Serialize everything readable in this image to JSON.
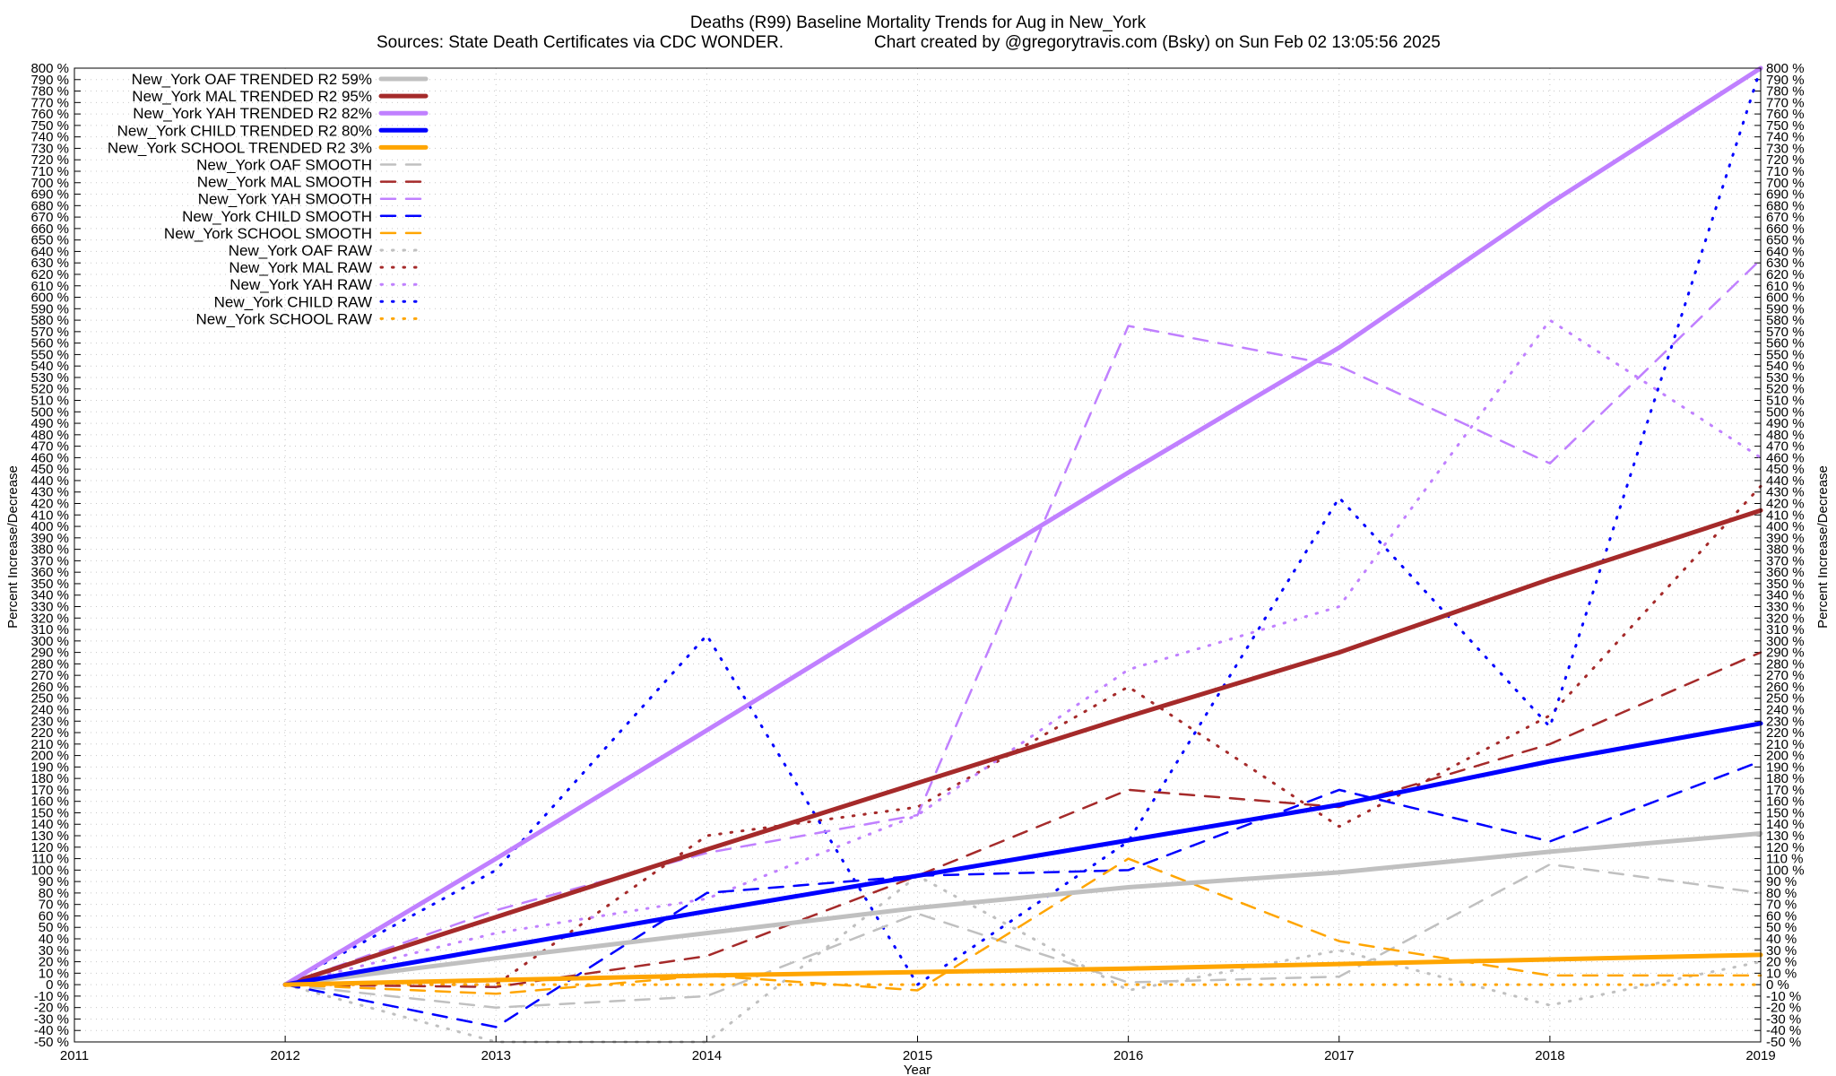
{
  "chart_data": {
    "type": "line",
    "title": "Deaths (R99)  Baseline Mortality Trends for Aug in New_York",
    "subtitle_left": "Sources: State Death Certificates via CDC WONDER.",
    "subtitle_right": "Chart created by @gregorytravis.com (Bsky) on Sun Feb 02 13:05:56 2025",
    "xlabel": "Year",
    "ylabel": "Percent Increase/Decrease",
    "y2label": "Percent Increase/Decrease",
    "xlim": [
      2011,
      2019
    ],
    "ylim": [
      -50,
      800
    ],
    "ytick_step": 10,
    "grid": true,
    "legend_position": "top-left",
    "x_ticks": [
      "2011",
      "2012",
      "2013",
      "2014",
      "2015",
      "2016",
      "2017",
      "2018",
      "2019"
    ],
    "y_ticks": [
      "-50 %",
      "-40 %",
      "-30 %",
      "-20 %",
      "-10 %",
      "0 %",
      "10 %",
      "20 %",
      "30 %",
      "40 %",
      "50 %",
      "60 %",
      "70 %",
      "80 %",
      "90 %",
      "100 %",
      "110 %",
      "120 %",
      "130 %",
      "140 %",
      "150 %",
      "160 %",
      "170 %",
      "180 %",
      "190 %",
      "200 %",
      "210 %",
      "220 %",
      "230 %",
      "240 %",
      "250 %",
      "260 %",
      "270 %",
      "280 %",
      "290 %",
      "300 %",
      "310 %",
      "320 %",
      "330 %",
      "340 %",
      "350 %",
      "360 %",
      "370 %",
      "380 %",
      "390 %",
      "400 %",
      "410 %",
      "420 %",
      "430 %",
      "440 %",
      "450 %",
      "460 %",
      "470 %",
      "480 %",
      "490 %",
      "500 %",
      "510 %",
      "520 %",
      "530 %",
      "540 %",
      "550 %",
      "560 %",
      "570 %",
      "580 %",
      "590 %",
      "600 %",
      "610 %",
      "620 %",
      "630 %",
      "640 %",
      "650 %",
      "660 %",
      "670 %",
      "680 %",
      "690 %",
      "700 %",
      "710 %",
      "720 %",
      "730 %",
      "740 %",
      "750 %",
      "760 %",
      "770 %",
      "780 %",
      "790 %",
      "800 %"
    ],
    "series": [
      {
        "name": "New_York OAF TRENDED R2  59%",
        "color": "#c0c0c0",
        "style": "solid",
        "x": [
          2012,
          2013,
          2014,
          2015,
          2016,
          2017,
          2018,
          2019
        ],
        "y": [
          0,
          23,
          45,
          67,
          85,
          98,
          116,
          132
        ]
      },
      {
        "name": "New_York MAL TRENDED R2  95%",
        "color": "#a52a2a",
        "style": "solid",
        "x": [
          2012,
          2013,
          2014,
          2015,
          2016,
          2017,
          2018,
          2019
        ],
        "y": [
          0,
          59,
          118,
          176,
          234,
          290,
          354,
          414
        ]
      },
      {
        "name": "New_York YAH TRENDED R2  82%",
        "color": "#c080ff",
        "style": "solid",
        "x": [
          2012,
          2013,
          2014,
          2015,
          2016,
          2017,
          2018,
          2019
        ],
        "y": [
          0,
          110,
          222,
          335,
          447,
          556,
          682,
          800
        ]
      },
      {
        "name": "New_York CHILD TRENDED R2  80%",
        "color": "#0000ff",
        "style": "solid",
        "x": [
          2012,
          2013,
          2014,
          2015,
          2016,
          2017,
          2018,
          2019
        ],
        "y": [
          0,
          32,
          64,
          95,
          126,
          157,
          195,
          228
        ]
      },
      {
        "name": "New_York SCHOOL TRENDED R2  3%",
        "color": "#ffa500",
        "style": "solid",
        "x": [
          2012,
          2013,
          2014,
          2015,
          2016,
          2017,
          2018,
          2019
        ],
        "y": [
          0,
          4,
          8,
          11,
          14,
          18,
          22,
          26
        ]
      },
      {
        "name": "New_York OAF SMOOTH",
        "color": "#c0c0c0",
        "style": "dashed",
        "x": [
          2012,
          2013,
          2014,
          2015,
          2016,
          2017,
          2018,
          2019
        ],
        "y": [
          0,
          -20,
          -10,
          62,
          2,
          7,
          105,
          80
        ]
      },
      {
        "name": "New_York MAL SMOOTH",
        "color": "#a52a2a",
        "style": "dashed",
        "x": [
          2012,
          2013,
          2014,
          2015,
          2016,
          2017,
          2018,
          2019
        ],
        "y": [
          0,
          -2,
          25,
          95,
          170,
          155,
          210,
          290
        ]
      },
      {
        "name": "New_York YAH SMOOTH",
        "color": "#c080ff",
        "style": "dashed",
        "x": [
          2012,
          2013,
          2014,
          2015,
          2016,
          2017,
          2018,
          2019
        ],
        "y": [
          0,
          65,
          115,
          148,
          575,
          540,
          455,
          633
        ]
      },
      {
        "name": "New_York CHILD SMOOTH",
        "color": "#0000ff",
        "style": "dashed",
        "x": [
          2012,
          2013,
          2014,
          2015,
          2016,
          2017,
          2018,
          2019
        ],
        "y": [
          0,
          -37,
          80,
          95,
          100,
          170,
          125,
          195
        ]
      },
      {
        "name": "New_York SCHOOL SMOOTH",
        "color": "#ffa500",
        "style": "dashed",
        "x": [
          2012,
          2013,
          2014,
          2015,
          2016,
          2017,
          2018,
          2019
        ],
        "y": [
          0,
          -8,
          8,
          -5,
          110,
          38,
          8,
          8
        ]
      },
      {
        "name": "New_York OAF RAW",
        "color": "#c0c0c0",
        "style": "dotted",
        "x": [
          2012,
          2013,
          2014,
          2015,
          2016,
          2017,
          2018,
          2019
        ],
        "y": [
          0,
          -50,
          -50,
          95,
          -5,
          30,
          -18,
          20
        ]
      },
      {
        "name": "New_York MAL RAW",
        "color": "#a52a2a",
        "style": "dotted",
        "x": [
          2012,
          2013,
          2014,
          2015,
          2016,
          2017,
          2018,
          2019
        ],
        "y": [
          0,
          0,
          130,
          155,
          260,
          138,
          235,
          435
        ]
      },
      {
        "name": "New_York YAH RAW",
        "color": "#c080ff",
        "style": "dotted",
        "x": [
          2012,
          2013,
          2014,
          2015,
          2016,
          2017,
          2018,
          2019
        ],
        "y": [
          0,
          45,
          75,
          148,
          275,
          330,
          580,
          460
        ]
      },
      {
        "name": "New_York CHILD RAW",
        "color": "#0000ff",
        "style": "dotted",
        "x": [
          2012,
          2013,
          2014,
          2015,
          2016,
          2017,
          2018,
          2019
        ],
        "y": [
          0,
          100,
          305,
          0,
          125,
          425,
          225,
          800
        ]
      },
      {
        "name": "New_York SCHOOL RAW",
        "color": "#ffa500",
        "style": "dotted",
        "x": [
          2012,
          2013,
          2014,
          2015,
          2016,
          2017,
          2018,
          2019
        ],
        "y": [
          0,
          0,
          0,
          0,
          0,
          0,
          0,
          0
        ]
      }
    ]
  }
}
